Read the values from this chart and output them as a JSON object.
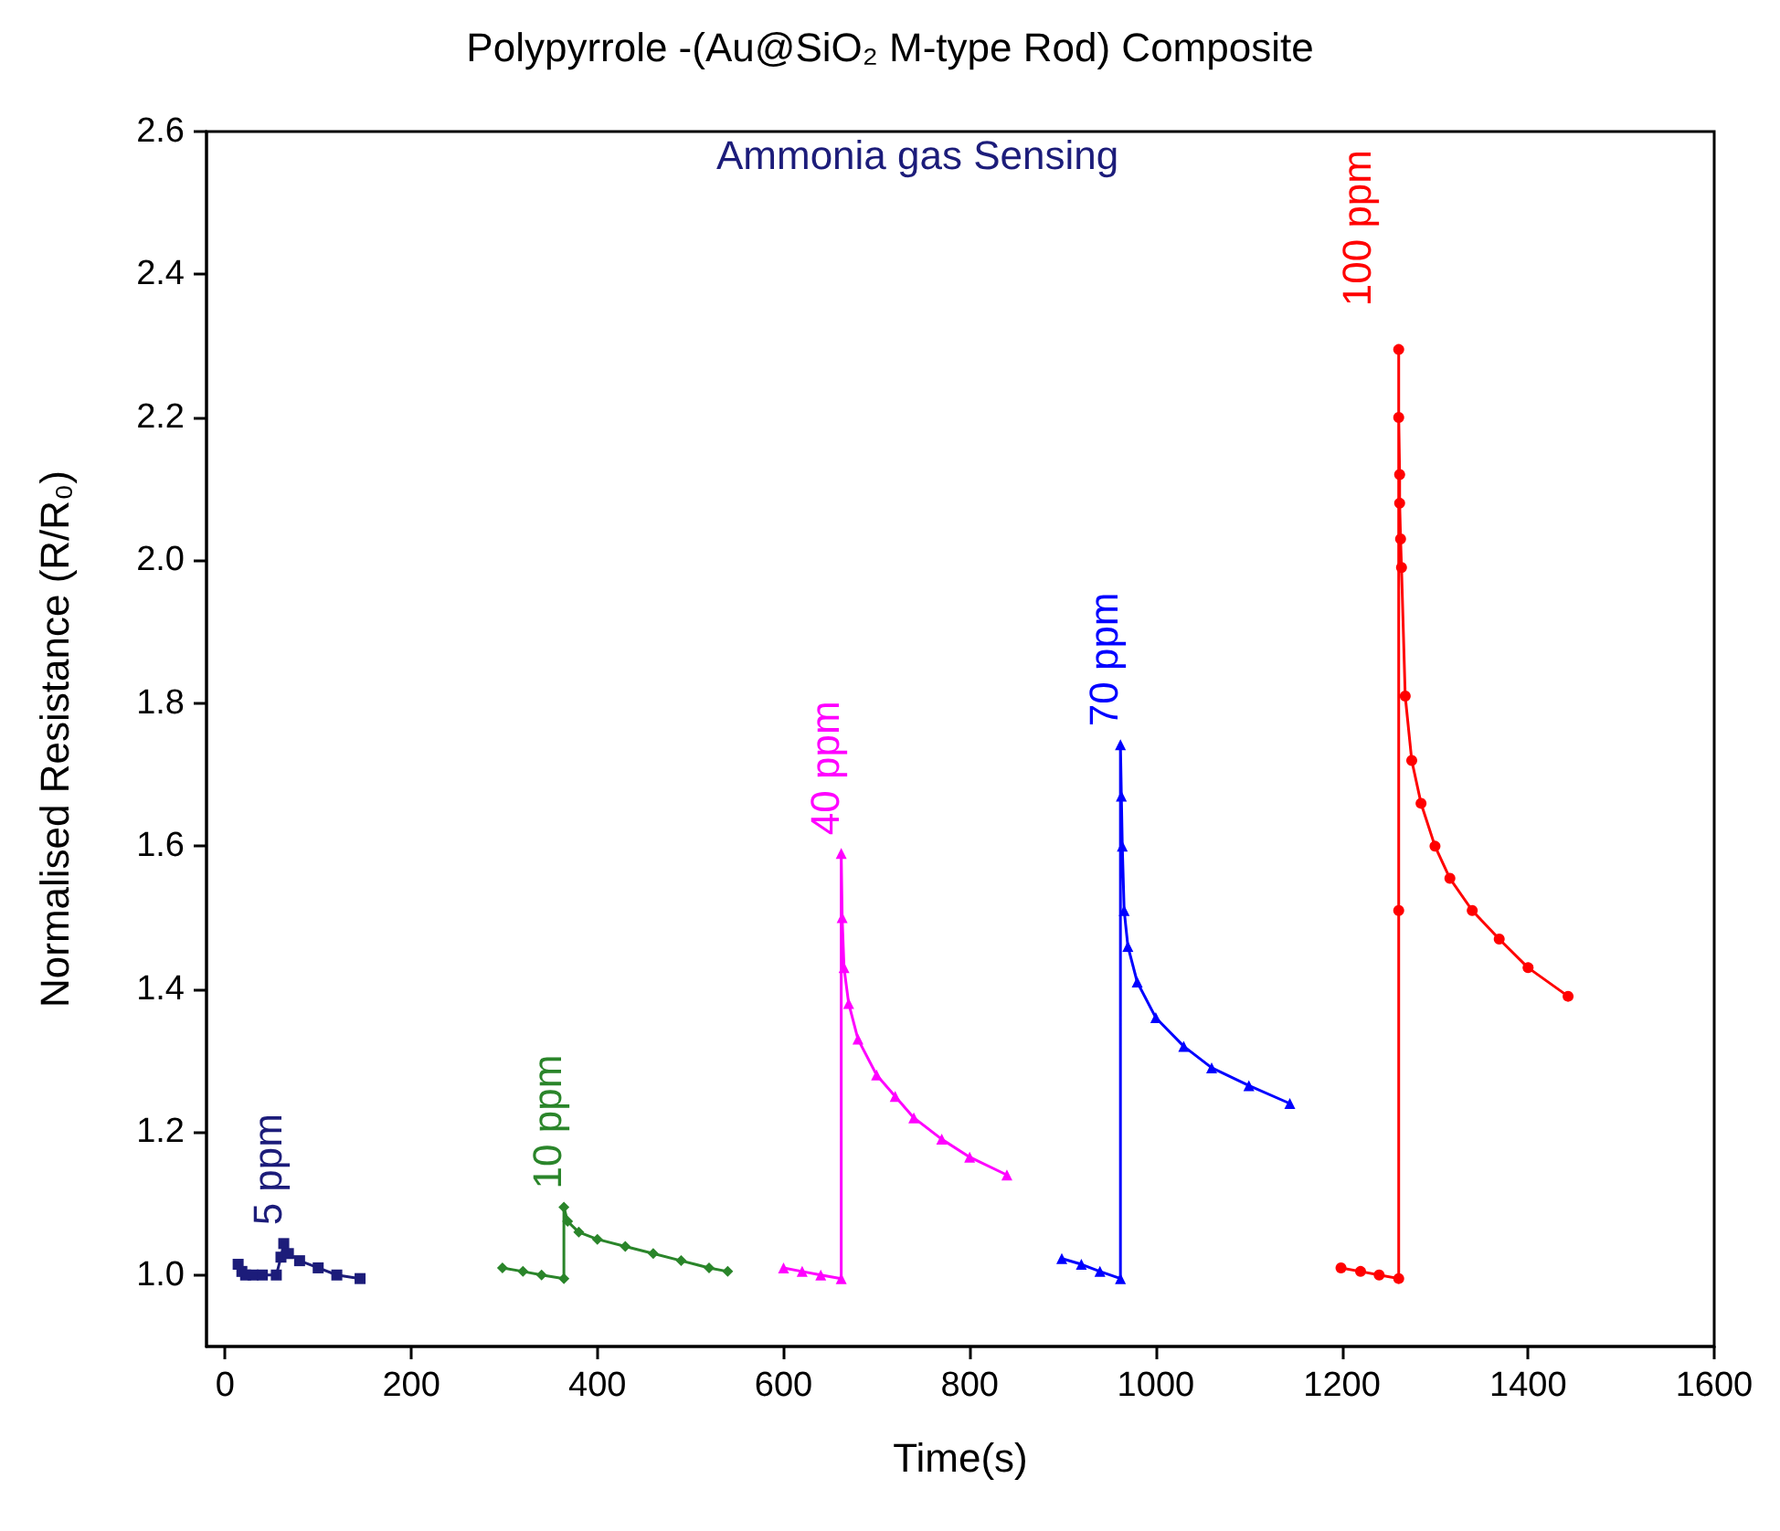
{
  "chart_data": {
    "type": "line",
    "title": "Polypyrrole -(Au@SiO₂ M-type Rod) Composite",
    "xlabel": "Time(s)",
    "ylabel": "Normalised Resistance (R/R₀)",
    "annotations": [
      "Ammonia gas Sensing"
    ],
    "xlim": [
      -20,
      1600
    ],
    "xticks": [
      0,
      200,
      400,
      600,
      800,
      1000,
      1200,
      1400,
      1600
    ],
    "ylim": [
      0.9,
      2.6
    ],
    "yticks": [
      {
        "value": 1,
        "label": "1.0"
      },
      1.2,
      1.4,
      1.6,
      1.8,
      {
        "value": 2,
        "label": "2.0"
      },
      2.2,
      2.4,
      2.6
    ],
    "grid": false,
    "legend": false,
    "line_style": "solid",
    "series": [
      {
        "name": "5 ppm",
        "color": "#1c1c7a",
        "marker": "square",
        "x": [
          14,
          18,
          22,
          30,
          40,
          55,
          60,
          63,
          68,
          80,
          100,
          120,
          145
        ],
        "values": [
          1.015,
          1.005,
          1.0,
          1.0,
          1.0,
          1.0,
          1.025,
          1.044,
          1.03,
          1.02,
          1.01,
          1.0,
          0.995
        ]
      },
      {
        "name": "10 ppm",
        "color": "#2a852a",
        "marker": "diamond",
        "x": [
          298,
          320,
          340,
          364,
          364,
          368,
          380,
          400,
          430,
          460,
          490,
          520,
          540
        ],
        "values": [
          1.01,
          1.005,
          1.0,
          0.995,
          1.095,
          1.075,
          1.06,
          1.05,
          1.04,
          1.03,
          1.02,
          1.01,
          1.005
        ]
      },
      {
        "name": "40 ppm",
        "color": "#ff00ff",
        "marker": "triangle",
        "x": [
          600,
          620,
          640,
          662,
          662,
          663,
          665,
          670,
          680,
          700,
          720,
          740,
          770,
          800,
          840
        ],
        "values": [
          1.01,
          1.005,
          1.0,
          0.995,
          1.59,
          1.5,
          1.43,
          1.38,
          1.33,
          1.28,
          1.25,
          1.22,
          1.19,
          1.165,
          1.14
        ]
      },
      {
        "name": "70 ppm",
        "color": "#0000ff",
        "marker": "triangle",
        "x": [
          899,
          920,
          940,
          962,
          962,
          963,
          964,
          966,
          970,
          980,
          1000,
          1030,
          1060,
          1100,
          1144
        ],
        "values": [
          1.023,
          1.015,
          1.005,
          0.995,
          1.742,
          1.67,
          1.6,
          1.51,
          1.46,
          1.41,
          1.36,
          1.32,
          1.29,
          1.265,
          1.24
        ]
      },
      {
        "name": "100 ppm",
        "color": "#ff0000",
        "marker": "circle",
        "x": [
          1199,
          1220,
          1240,
          1261,
          1261,
          1261,
          1261,
          1262,
          1262,
          1263,
          1264,
          1268,
          1275,
          1285,
          1300,
          1316,
          1340,
          1369,
          1400,
          1443
        ],
        "values": [
          1.01,
          1.005,
          1.0,
          0.995,
          1.51,
          2.295,
          2.2,
          2.12,
          2.08,
          2.03,
          1.99,
          1.81,
          1.72,
          1.66,
          1.6,
          1.555,
          1.51,
          1.47,
          1.43,
          1.39
        ]
      }
    ]
  }
}
